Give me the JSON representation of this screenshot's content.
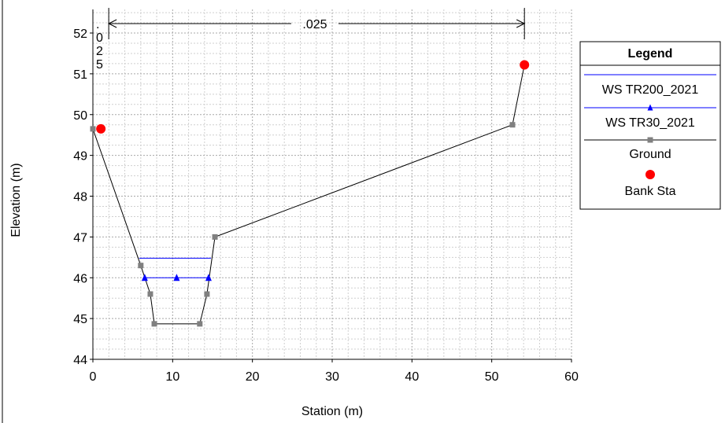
{
  "chart_data": {
    "type": "line",
    "xlabel": "Station (m)",
    "ylabel": "Elevation (m)",
    "xlim": [
      0,
      60
    ],
    "ylim": [
      44,
      52
    ],
    "x_ticks": [
      0,
      10,
      20,
      30,
      40,
      50,
      60
    ],
    "y_ticks": [
      44,
      45,
      46,
      47,
      48,
      49,
      50,
      51,
      52
    ],
    "grid": true,
    "legend_position": "right",
    "legend_title": "Legend",
    "series": [
      {
        "name": "WS TR200_2021",
        "color": "#0000ff",
        "marker": "none",
        "x": [
          5.8,
          14.8
        ],
        "y": [
          46.48,
          46.48
        ]
      },
      {
        "name": "WS TR30_2021",
        "color": "#0000ff",
        "marker": "triangle",
        "x": [
          6.5,
          10.5,
          14.5
        ],
        "y": [
          46.0,
          46.0,
          46.0
        ],
        "line_x": [
          6.3,
          14.5
        ],
        "line_y": [
          46.0,
          46.0
        ]
      },
      {
        "name": "Ground",
        "color": "#000000",
        "marker_color": "#808080",
        "marker": "square",
        "x": [
          0,
          6.0,
          7.2,
          7.7,
          13.4,
          14.3,
          15.3,
          52.6,
          54.1
        ],
        "y": [
          49.65,
          46.3,
          45.6,
          44.87,
          44.87,
          45.6,
          47.0,
          49.75,
          51.22
        ]
      },
      {
        "name": "Bank Sta",
        "color": "#ff0000",
        "marker": "circle",
        "x": [
          1.0,
          54.1
        ],
        "y": [
          49.65,
          51.22
        ]
      }
    ],
    "annotations": {
      "reach_label": ".025",
      "reach_start_x": 1.0,
      "reach_end_x": 54.1,
      "left_overbank_label": ".025"
    }
  }
}
